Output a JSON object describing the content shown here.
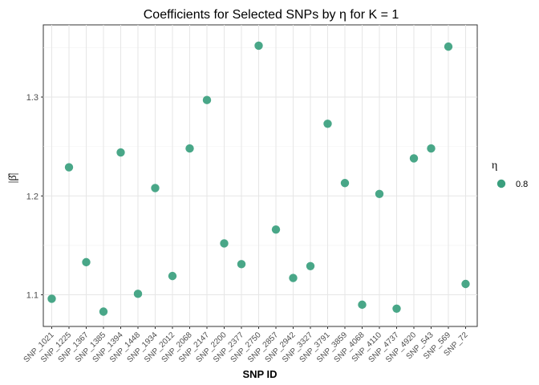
{
  "chart_data": {
    "type": "scatter",
    "title": "Coefficients for Selected SNPs by η for K = 1",
    "xlabel": "SNP ID",
    "ylabel": "|β̂|",
    "ylim": [
      1.068,
      1.373
    ],
    "yticks": [
      1.1,
      1.2,
      1.3
    ],
    "grid": true,
    "legend_title": "η",
    "legend_position": "right",
    "point_color": "#3a9f7e",
    "categories": [
      "SNP_1021",
      "SNP_1225",
      "SNP_1367",
      "SNP_1385",
      "SNP_1394",
      "SNP_1448",
      "SNP_1934",
      "SNP_2012",
      "SNP_2068",
      "SNP_2147",
      "SNP_2200",
      "SNP_2377",
      "SNP_2750",
      "SNP_2857",
      "SNP_2942",
      "SNP_3327",
      "SNP_3791",
      "SNP_3859",
      "SNP_4068",
      "SNP_4110",
      "SNP_4737",
      "SNP_4920",
      "SNP_543",
      "SNP_569",
      "SNP_72"
    ],
    "series": [
      {
        "name": "0.8",
        "values": [
          1.096,
          1.229,
          1.133,
          1.083,
          1.244,
          1.101,
          1.208,
          1.119,
          1.248,
          1.297,
          1.152,
          1.131,
          1.352,
          1.166,
          1.117,
          1.129,
          1.273,
          1.213,
          1.09,
          1.202,
          1.086,
          1.238,
          1.248,
          1.351,
          1.111
        ]
      }
    ]
  }
}
